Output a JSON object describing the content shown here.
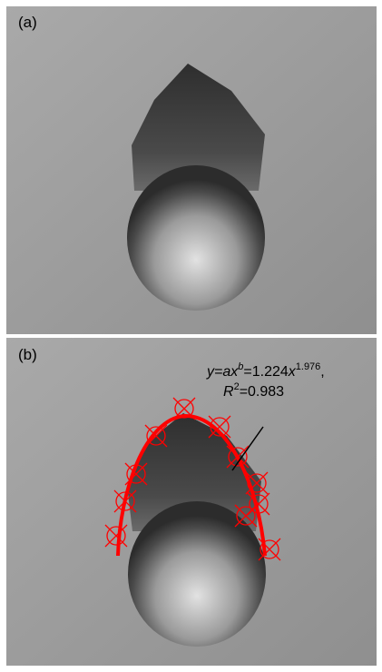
{
  "panels": [
    {
      "label": "(a)"
    },
    {
      "label": "(b)"
    }
  ],
  "annotation": {
    "line1": {
      "y_eq": "y=ax",
      "b": "b",
      "coef": "=1.224",
      "x": "x",
      "exp": "1.976",
      "comma": ","
    },
    "line2": {
      "r": "R",
      "sq": "2",
      "value": "=0.983"
    }
  }
}
